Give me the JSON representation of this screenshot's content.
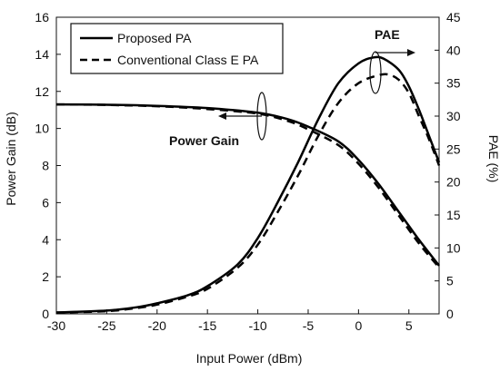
{
  "chart_data": {
    "type": "line",
    "title": "",
    "xlabel": "Input Power (dBm)",
    "ylabel": "Power Gain (dB)",
    "y2label": "PAE (%)",
    "xlim": [
      -30,
      8
    ],
    "ylim": [
      0,
      16
    ],
    "y2lim": [
      0,
      45
    ],
    "xticks": [
      -30,
      -25,
      -20,
      -15,
      -10,
      -5,
      0,
      5
    ],
    "yticks": [
      0,
      2,
      4,
      6,
      8,
      10,
      12,
      14,
      16
    ],
    "y2ticks": [
      0,
      5,
      10,
      15,
      20,
      25,
      30,
      35,
      40,
      45
    ],
    "grid": false,
    "legend_position": "top-left",
    "legend": [
      "Proposed PA",
      "Conventional Class E PA"
    ],
    "annotations": [
      "Power Gain",
      "PAE"
    ],
    "series": [
      {
        "name": "Proposed PA",
        "metric": "Power Gain",
        "axis": "left",
        "style": "solid",
        "x": [
          -30,
          -25,
          -20,
          -15,
          -10,
          -7,
          -5,
          -2,
          0,
          2,
          4,
          6,
          8
        ],
        "y": [
          11.3,
          11.28,
          11.22,
          11.1,
          10.85,
          10.5,
          10.1,
          9.3,
          8.3,
          7.0,
          5.5,
          4.0,
          2.6
        ]
      },
      {
        "name": "Conventional Class E PA",
        "metric": "Power Gain",
        "axis": "left",
        "style": "dashed",
        "x": [
          -30,
          -25,
          -20,
          -15,
          -10,
          -7,
          -5,
          -2,
          0,
          2,
          4,
          6,
          8
        ],
        "y": [
          11.3,
          11.27,
          11.2,
          11.05,
          10.8,
          10.4,
          9.95,
          9.1,
          8.1,
          6.8,
          5.3,
          3.8,
          2.5
        ]
      },
      {
        "name": "Proposed PA",
        "metric": "PAE",
        "axis": "right",
        "style": "solid",
        "x": [
          -30,
          -25,
          -22,
          -20,
          -17,
          -15,
          -12,
          -10,
          -8,
          -6,
          -4,
          -2,
          0,
          1.5,
          2.5,
          4,
          5,
          6,
          7,
          8
        ],
        "y": [
          0.2,
          0.5,
          1.0,
          1.6,
          2.8,
          4.2,
          7.5,
          11.5,
          17.0,
          23.0,
          29.5,
          35.0,
          38.0,
          38.9,
          38.7,
          37.0,
          34.5,
          31.0,
          27.0,
          23.0
        ]
      },
      {
        "name": "Conventional Class E PA",
        "metric": "PAE",
        "axis": "right",
        "style": "dashed",
        "x": [
          -30,
          -25,
          -22,
          -20,
          -17,
          -15,
          -12,
          -10,
          -8,
          -6,
          -4,
          -2,
          0,
          2,
          3,
          4,
          5,
          6,
          7,
          8
        ],
        "y": [
          0.2,
          0.4,
          0.9,
          1.4,
          2.6,
          3.8,
          7.0,
          10.5,
          15.5,
          21.0,
          27.0,
          32.0,
          35.0,
          36.2,
          36.3,
          35.5,
          33.5,
          30.0,
          26.5,
          22.5
        ]
      }
    ]
  }
}
